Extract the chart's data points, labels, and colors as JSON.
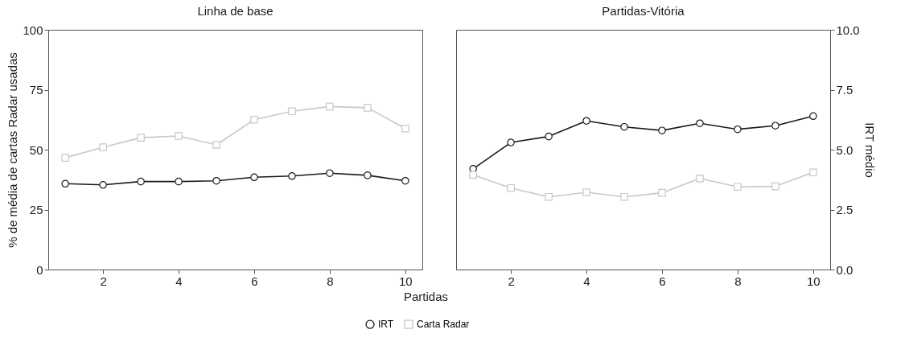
{
  "chart_data": [
    {
      "type": "line",
      "title": "Linha de base",
      "xlabel": "Partidas",
      "ylabel": "% de média de cartas Radar usadas",
      "x": [
        1,
        2,
        3,
        4,
        5,
        6,
        7,
        8,
        9,
        10
      ],
      "xlim": [
        0.55,
        10.45
      ],
      "xticks": [
        2,
        4,
        6,
        8,
        10
      ],
      "ylim": [
        0,
        100
      ],
      "yticks": [
        0,
        25,
        50,
        75,
        100
      ],
      "y2lim": [
        0,
        10
      ],
      "legend": "bottom",
      "series": [
        {
          "name": "IRT",
          "color": "#1a1a1a",
          "marker": "circle",
          "axis": "y2",
          "values": [
            3.58,
            3.53,
            3.67,
            3.67,
            3.7,
            3.85,
            3.9,
            4.02,
            3.93,
            3.7
          ]
        },
        {
          "name": "Carta Radar",
          "color": "#c8c8c8",
          "marker": "square",
          "values": [
            46.6,
            51,
            55,
            55.7,
            52,
            62.5,
            66,
            68,
            67.5,
            58.8
          ]
        }
      ]
    },
    {
      "type": "line",
      "title": "Partidas-Vitória",
      "y2label": "IRT médio",
      "x": [
        1,
        2,
        3,
        4,
        5,
        6,
        7,
        8,
        9,
        10
      ],
      "xlim": [
        0.55,
        10.45
      ],
      "xticks": [
        2,
        4,
        6,
        8,
        10
      ],
      "ylim": [
        0,
        100
      ],
      "y2lim": [
        0,
        10
      ],
      "y2ticks": [
        {
          "value": 0,
          "label": "0.0"
        },
        {
          "value": 2.5,
          "label": "2.5"
        },
        {
          "value": 5,
          "label": "5.0"
        },
        {
          "value": 7.5,
          "label": "7.5"
        },
        {
          "value": 10,
          "label": "10.0"
        }
      ],
      "series": [
        {
          "name": "IRT",
          "color": "#1a1a1a",
          "marker": "circle",
          "axis": "y2",
          "values": [
            4.2,
            5.3,
            5.55,
            6.2,
            5.95,
            5.8,
            6.1,
            5.85,
            6.0,
            6.4
          ]
        },
        {
          "name": "Carta Radar",
          "color": "#c8c8c8",
          "marker": "square",
          "values": [
            39.5,
            34,
            30.3,
            32.2,
            30.3,
            32,
            38,
            34.5,
            34.7,
            40.5
          ]
        }
      ]
    }
  ]
}
